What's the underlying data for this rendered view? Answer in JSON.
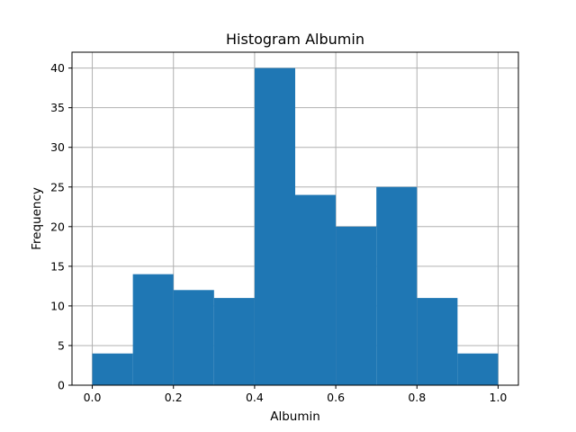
{
  "chart_data": {
    "type": "bar",
    "title": "Histogram  Albumin",
    "xlabel": "Albumin",
    "ylabel": "Frequency",
    "bins": [
      {
        "start": 0.0,
        "end": 0.1,
        "count": 4
      },
      {
        "start": 0.1,
        "end": 0.2,
        "count": 14
      },
      {
        "start": 0.2,
        "end": 0.3,
        "count": 12
      },
      {
        "start": 0.3,
        "end": 0.4,
        "count": 11
      },
      {
        "start": 0.4,
        "end": 0.5,
        "count": 40
      },
      {
        "start": 0.5,
        "end": 0.6,
        "count": 24
      },
      {
        "start": 0.6,
        "end": 0.7,
        "count": 20
      },
      {
        "start": 0.7,
        "end": 0.8,
        "count": 25
      },
      {
        "start": 0.8,
        "end": 0.9,
        "count": 11
      },
      {
        "start": 0.9,
        "end": 1.0,
        "count": 4
      }
    ],
    "xlim": [
      -0.05,
      1.05
    ],
    "ylim": [
      0,
      42
    ],
    "xticks": [
      0.0,
      0.2,
      0.4,
      0.6,
      0.8,
      1.0
    ],
    "xtick_labels": [
      "0.0",
      "0.2",
      "0.4",
      "0.6",
      "0.8",
      "1.0"
    ],
    "yticks": [
      0,
      5,
      10,
      15,
      20,
      25,
      30,
      35,
      40
    ],
    "ytick_labels": [
      "0",
      "5",
      "10",
      "15",
      "20",
      "25",
      "30",
      "35",
      "40"
    ],
    "grid": true,
    "bar_color": "#1f77b4"
  }
}
